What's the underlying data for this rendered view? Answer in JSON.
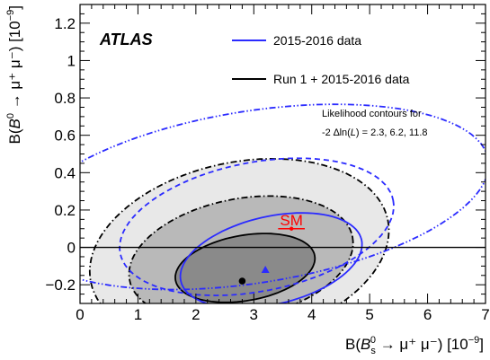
{
  "chart_data": {
    "type": "contour",
    "experiment_label": "ATLAS",
    "xlabel_parts": {
      "prefix": "B(",
      "B": "B",
      "sup": "0",
      "sub": "s",
      "decay": " → μ⁺ μ⁻) [10",
      "exp": "−9",
      "suffix": "]"
    },
    "ylabel_parts": {
      "prefix": "B(",
      "B": "B",
      "sup": "0",
      "decay": " → μ⁺ μ⁻) [10",
      "exp": "−9",
      "suffix": "]"
    },
    "xlim": [
      0,
      7
    ],
    "ylim": [
      -0.3,
      1.3
    ],
    "x_ticks": [
      0,
      1,
      2,
      3,
      4,
      5,
      6,
      7
    ],
    "x_tick_labels": [
      "0",
      "1",
      "2",
      "3",
      "4",
      "5",
      "6",
      "7"
    ],
    "y_ticks": [
      -0.2,
      0,
      0.2,
      0.4,
      0.6,
      0.8,
      1,
      1.2
    ],
    "y_tick_labels": [
      "−0.2",
      "0",
      "0.2",
      "0.4",
      "0.6",
      "0.8",
      "1",
      "1.2"
    ],
    "legend": [
      {
        "label": "2015-2016  data",
        "color": "#2b2bff"
      },
      {
        "label": "Run 1 + 2015-2016 data",
        "color": "#000000"
      }
    ],
    "annotation": {
      "line1": "Likelihood contours for",
      "line2_prefix": "-2 ∆ln(",
      "line2_L": "L",
      "line2_suffix": ") = 2.3, 6.2, 11.8"
    },
    "sm": {
      "label": "SM",
      "x": 3.65,
      "y": 0.1,
      "xerr": 0.23,
      "color": "#ff0000"
    },
    "zero_line": 0,
    "best_fit": [
      {
        "series": "Run 1 + 2015-2016 data",
        "x": 2.8,
        "y": -0.18,
        "marker": "circle",
        "color": "#000000"
      },
      {
        "series": "2015-2016  data",
        "x": 3.2,
        "y": -0.12,
        "marker": "triangle",
        "color": "#2b2bff"
      }
    ],
    "contour_levels": [
      2.3,
      6.2,
      11.8
    ],
    "contours": {
      "combined": {
        "color": "#000000",
        "fills": [
          "#e8e8e8",
          "#b9b9b9",
          "#8a8a8a"
        ],
        "ellipses": [
          {
            "level": 11.8,
            "cx": 2.75,
            "cy": -0.02,
            "rx": 2.62,
            "ry": 0.475,
            "angle": -12,
            "dash": "dashdot"
          },
          {
            "level": 6.2,
            "cx": 2.78,
            "cy": -0.06,
            "rx": 1.96,
            "ry": 0.32,
            "angle": -11,
            "dash": "dashdot"
          },
          {
            "level": 2.3,
            "cx": 2.85,
            "cy": -0.11,
            "rx": 1.22,
            "ry": 0.175,
            "angle": -10,
            "dash": "solid"
          }
        ]
      },
      "run2": {
        "color": "#2b2bff",
        "ellipses": [
          {
            "level": 11.8,
            "cx": 3.0,
            "cy": 0.27,
            "rx": 4.1,
            "ry": 0.46,
            "angle": -9,
            "dash": "dashdotdot"
          },
          {
            "level": 6.2,
            "cx": 3.05,
            "cy": 0.11,
            "rx": 2.4,
            "ry": 0.345,
            "angle": -11,
            "dash": "dash"
          },
          {
            "level": 2.3,
            "cx": 3.3,
            "cy": -0.07,
            "rx": 1.6,
            "ry": 0.235,
            "angle": -13,
            "dash": "solid"
          }
        ]
      }
    }
  }
}
